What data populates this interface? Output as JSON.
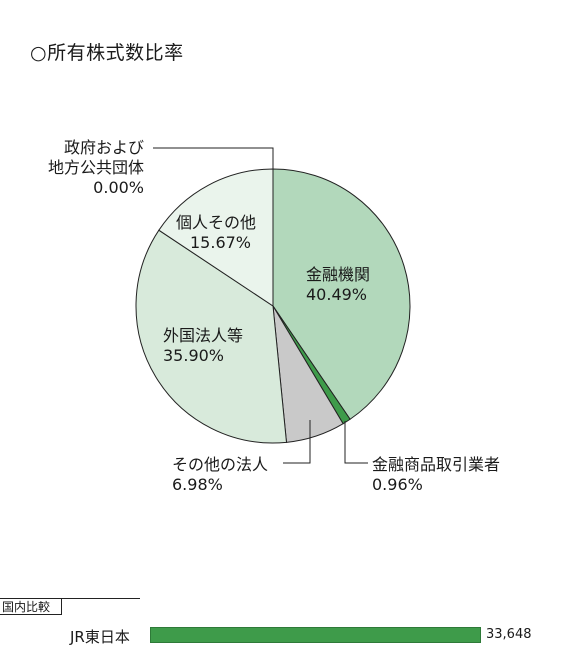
{
  "title": "○所有株式数比率",
  "chart_data": {
    "type": "pie",
    "title": "○所有株式数比率",
    "slices": [
      {
        "label": "金融機関",
        "value": 40.49,
        "value_text": "40.49%",
        "color": "#b2d8bb"
      },
      {
        "label": "金融商品取引業者",
        "value": 0.96,
        "value_text": "0.96%",
        "color": "#3e9b4a"
      },
      {
        "label": "その他の法人",
        "value": 6.98,
        "value_text": "6.98%",
        "color": "#c9c9c9"
      },
      {
        "label": "外国法人等",
        "value": 35.9,
        "value_text": "35.90%",
        "color": "#d8eadb"
      },
      {
        "label": "個人その他",
        "value": 15.67,
        "value_text": "15.67%",
        "color": "#eaf4ec"
      },
      {
        "label": "政府および地方公共団体",
        "value": 0.0,
        "value_text": "0.00%",
        "color": "#ffffff"
      }
    ],
    "labels": {
      "gov_line1": "政府および",
      "gov_line2": "地方公共団体"
    }
  },
  "domestic": {
    "heading": "国内比較",
    "bars": [
      {
        "label": "JR東日本",
        "value": 33648,
        "value_text": "33,648"
      }
    ]
  }
}
